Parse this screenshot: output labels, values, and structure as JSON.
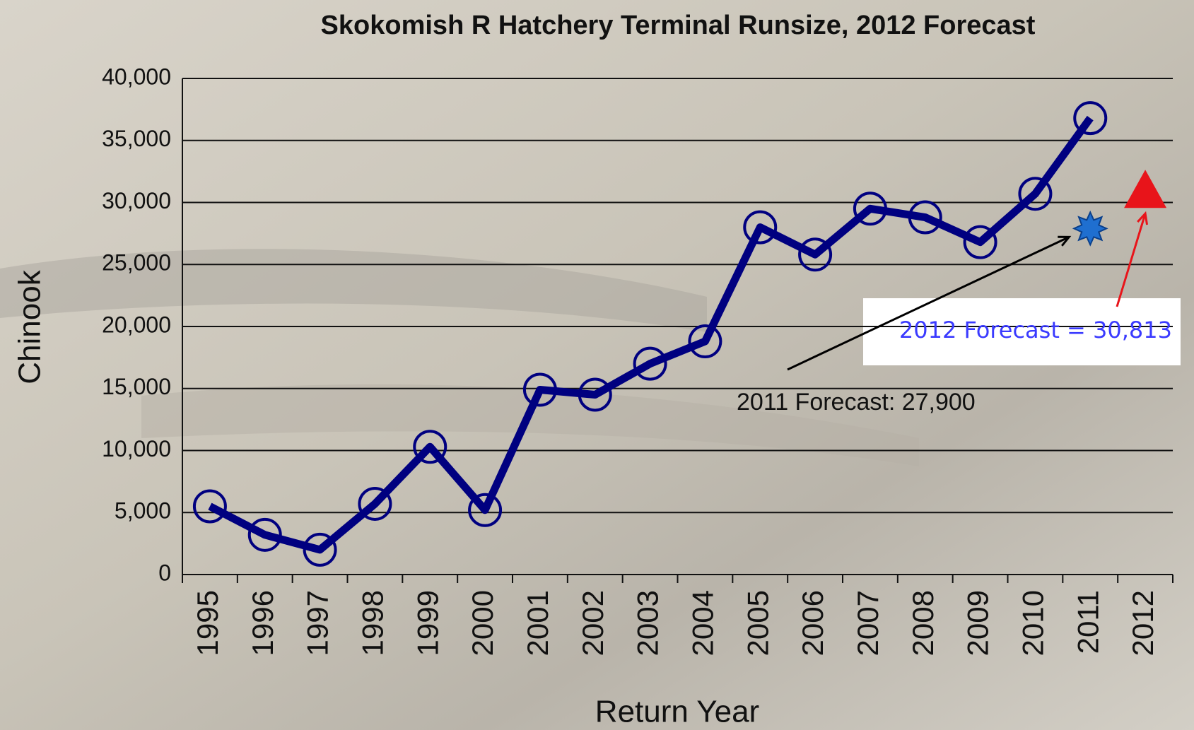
{
  "chart_data": {
    "type": "line",
    "title": "Skokomish R Hatchery Terminal Runsize, 2012 Forecast",
    "x_label": "Return Year",
    "y_label": "Chinook",
    "categories": [
      "1995",
      "1996",
      "1997",
      "1998",
      "1999",
      "2000",
      "2001",
      "2002",
      "2003",
      "2004",
      "2005",
      "2006",
      "2007",
      "2008",
      "2009",
      "2010",
      "2011",
      "2012"
    ],
    "values": [
      5500,
      3200,
      2000,
      5700,
      10300,
      5200,
      14900,
      14500,
      17000,
      18800,
      28000,
      25800,
      29500,
      28800,
      26800,
      30700,
      36800,
      null
    ],
    "color": "#000080",
    "ylim": [
      0,
      40000
    ],
    "yticks": [
      0,
      {
        "value": 5000,
        "label": "5,000"
      },
      {
        "value": 10000,
        "label": "10,000"
      },
      {
        "value": 15000,
        "label": "15,000"
      },
      {
        "value": 20000,
        "label": "20,000"
      },
      {
        "value": 25000,
        "label": "25,000"
      },
      {
        "value": 30000,
        "label": "30,000"
      },
      {
        "value": 35000,
        "label": "35,000"
      },
      {
        "value": 40000,
        "label": "40,000"
      }
    ],
    "grid": true,
    "annotations": [
      {
        "x": "2011",
        "value": 27900,
        "text": "2011 Forecast: 27,900",
        "color": "#1f6fd0",
        "marker": "star"
      },
      {
        "x": "2012",
        "value": 30813,
        "text": "2012 Forecast = 30,813",
        "color": "#e8141a",
        "marker": "triangle"
      }
    ]
  }
}
